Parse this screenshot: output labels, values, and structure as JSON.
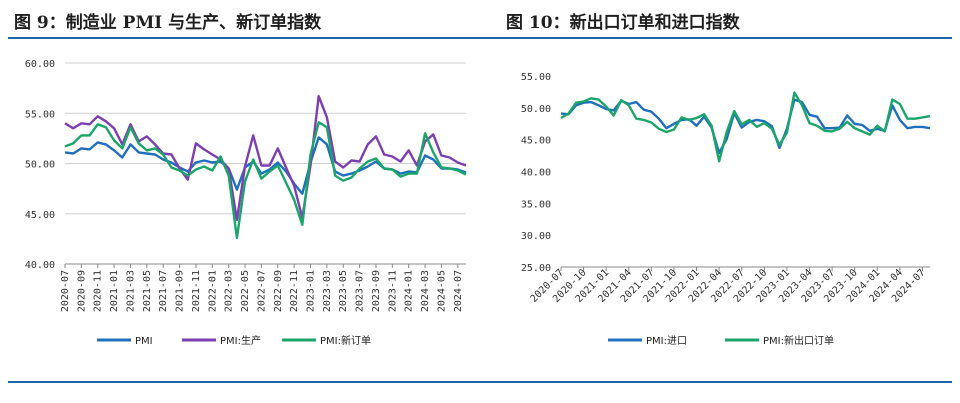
{
  "figures": {
    "left_title": "图 9：制造业 PMI 与生产、新订单指数",
    "right_title": "图 10：新出口订单和进口指数"
  },
  "colors": {
    "rule": "#1f63a8",
    "blue": "#1f6fbd",
    "purple": "#7d3fb0",
    "green": "#1aa66a",
    "grid": "#d0d0d0",
    "axis": "#888888"
  },
  "chart_data": [
    {
      "type": "line",
      "title": "",
      "xlabel": "",
      "ylabel": "",
      "ylim": [
        40,
        60
      ],
      "yticks": [
        "40.00",
        "45.00",
        "50.00",
        "55.00",
        "60.00"
      ],
      "grid": "horizontal",
      "legend_position": "bottom",
      "x": [
        "2020-07",
        "2020-08",
        "2020-09",
        "2020-10",
        "2020-11",
        "2020-12",
        "2021-01",
        "2021-02",
        "2021-03",
        "2021-04",
        "2021-05",
        "2021-06",
        "2021-07",
        "2021-08",
        "2021-09",
        "2021-10",
        "2021-11",
        "2021-12",
        "2022-01",
        "2022-02",
        "2022-03",
        "2022-04",
        "2022-05",
        "2022-06",
        "2022-07",
        "2022-08",
        "2022-09",
        "2022-10",
        "2022-11",
        "2022-12",
        "2023-01",
        "2023-02",
        "2023-03",
        "2023-04",
        "2023-05",
        "2023-06",
        "2023-07",
        "2023-08",
        "2023-09",
        "2023-10",
        "2023-11",
        "2023-12",
        "2024-01",
        "2024-02",
        "2024-03",
        "2024-04",
        "2024-05",
        "2024-06",
        "2024-07",
        "2024-08"
      ],
      "xtick_labels": [
        "2020-07",
        "2020-09",
        "2020-11",
        "2021-01",
        "2021-03",
        "2021-05",
        "2021-07",
        "2021-09",
        "2021-11",
        "2022-01",
        "2022-03",
        "2022-05",
        "2022-07",
        "2022-09",
        "2022-11",
        "2023-01",
        "2023-03",
        "2023-05",
        "2023-07",
        "2023-09",
        "2023-11",
        "2024-01",
        "2024-03",
        "2024-05",
        "2024-07"
      ],
      "series": [
        {
          "name": "PMI",
          "color": "#1f6fbd",
          "values": [
            51.1,
            51.0,
            51.5,
            51.4,
            52.1,
            51.9,
            51.3,
            50.6,
            51.9,
            51.1,
            51.0,
            50.9,
            50.4,
            50.1,
            49.6,
            49.2,
            50.1,
            50.3,
            50.1,
            50.2,
            49.5,
            47.4,
            49.6,
            50.2,
            49.0,
            49.4,
            50.1,
            49.2,
            48.0,
            47.0,
            50.1,
            52.6,
            51.9,
            49.2,
            48.8,
            49.0,
            49.3,
            49.7,
            50.2,
            49.5,
            49.4,
            49.0,
            49.2,
            49.1,
            50.8,
            50.4,
            49.5,
            49.5,
            49.4,
            49.1
          ]
        },
        {
          "name": "PMI:生产",
          "color": "#7d3fb0",
          "values": [
            54.0,
            53.5,
            54.0,
            53.9,
            54.7,
            54.2,
            53.5,
            51.9,
            53.9,
            52.2,
            52.7,
            51.9,
            51.0,
            50.9,
            49.5,
            48.4,
            52.0,
            51.4,
            50.9,
            50.4,
            49.5,
            44.4,
            49.7,
            52.8,
            49.8,
            49.8,
            51.5,
            49.6,
            47.8,
            44.6,
            49.8,
            56.7,
            54.6,
            50.2,
            49.6,
            50.3,
            50.2,
            51.9,
            52.7,
            50.9,
            50.7,
            50.2,
            51.3,
            49.8,
            52.2,
            52.9,
            50.8,
            50.6,
            50.1,
            49.8
          ]
        },
        {
          "name": "PMI:新订单",
          "color": "#1aa66a",
          "values": [
            51.7,
            52.0,
            52.8,
            52.8,
            53.9,
            53.6,
            52.3,
            51.5,
            53.6,
            52.0,
            51.3,
            51.5,
            50.9,
            49.6,
            49.3,
            48.8,
            49.4,
            49.7,
            49.3,
            50.7,
            48.8,
            42.6,
            48.2,
            50.4,
            48.5,
            49.2,
            49.8,
            48.1,
            46.4,
            43.9,
            50.9,
            54.1,
            53.6,
            48.8,
            48.3,
            48.6,
            49.5,
            50.2,
            50.5,
            49.5,
            49.4,
            48.7,
            49.0,
            49.0,
            53.0,
            51.1,
            49.6,
            49.5,
            49.3,
            48.9
          ]
        }
      ]
    },
    {
      "type": "line",
      "title": "",
      "xlabel": "",
      "ylabel": "",
      "ylim": [
        25,
        55
      ],
      "yticks": [
        "25.00",
        "30.00",
        "35.00",
        "40.00",
        "45.00",
        "50.00",
        "55.00"
      ],
      "grid": "none",
      "legend_position": "bottom",
      "x": [
        "2020-07",
        "2020-08",
        "2020-09",
        "2020-10",
        "2020-11",
        "2020-12",
        "2021-01",
        "2021-02",
        "2021-03",
        "2021-04",
        "2021-05",
        "2021-06",
        "2021-07",
        "2021-08",
        "2021-09",
        "2021-10",
        "2021-11",
        "2021-12",
        "2022-01",
        "2022-02",
        "2022-03",
        "2022-04",
        "2022-05",
        "2022-06",
        "2022-07",
        "2022-08",
        "2022-09",
        "2022-10",
        "2022-11",
        "2022-12",
        "2023-01",
        "2023-02",
        "2023-03",
        "2023-04",
        "2023-05",
        "2023-06",
        "2023-07",
        "2023-08",
        "2023-09",
        "2023-10",
        "2023-11",
        "2023-12",
        "2024-01",
        "2024-02",
        "2024-03",
        "2024-04",
        "2024-05",
        "2024-06",
        "2024-07",
        "2024-08"
      ],
      "xtick_labels": [
        "2020-07",
        "2020-10",
        "2021-01",
        "2021-04",
        "2021-07",
        "2021-10",
        "2022-01",
        "2022-04",
        "2022-07",
        "2022-10",
        "2023-01",
        "2023-04",
        "2023-07",
        "2023-10",
        "2024-01",
        "2024-04",
        "2024-07"
      ],
      "series": [
        {
          "name": "PMI:进口",
          "color": "#1f6fbd",
          "values": [
            49.1,
            49.0,
            50.4,
            50.8,
            50.9,
            50.4,
            49.8,
            49.6,
            51.1,
            50.6,
            50.9,
            49.7,
            49.4,
            48.3,
            46.8,
            47.5,
            48.1,
            48.2,
            47.2,
            48.6,
            46.9,
            42.9,
            45.1,
            49.2,
            46.9,
            47.8,
            48.1,
            47.9,
            47.1,
            43.7,
            46.7,
            51.3,
            50.9,
            48.9,
            48.6,
            46.8,
            46.8,
            46.9,
            48.8,
            47.5,
            47.3,
            46.4,
            46.7,
            46.4,
            50.4,
            48.1,
            46.8,
            47.0,
            47.0,
            46.8
          ]
        },
        {
          "name": "PMI:新出口订单",
          "color": "#1aa66a",
          "values": [
            48.4,
            49.1,
            50.8,
            51.0,
            51.5,
            51.3,
            50.2,
            48.8,
            51.2,
            50.4,
            48.3,
            48.1,
            47.7,
            46.7,
            46.2,
            46.6,
            48.5,
            48.1,
            48.4,
            49.0,
            47.2,
            41.6,
            46.2,
            49.5,
            47.4,
            48.1,
            47.0,
            47.6,
            46.7,
            44.2,
            46.1,
            52.4,
            50.4,
            47.6,
            47.2,
            46.4,
            46.3,
            46.7,
            47.8,
            46.8,
            46.3,
            45.8,
            47.2,
            46.3,
            51.3,
            50.6,
            48.3,
            48.3,
            48.5,
            48.7
          ]
        }
      ]
    }
  ]
}
